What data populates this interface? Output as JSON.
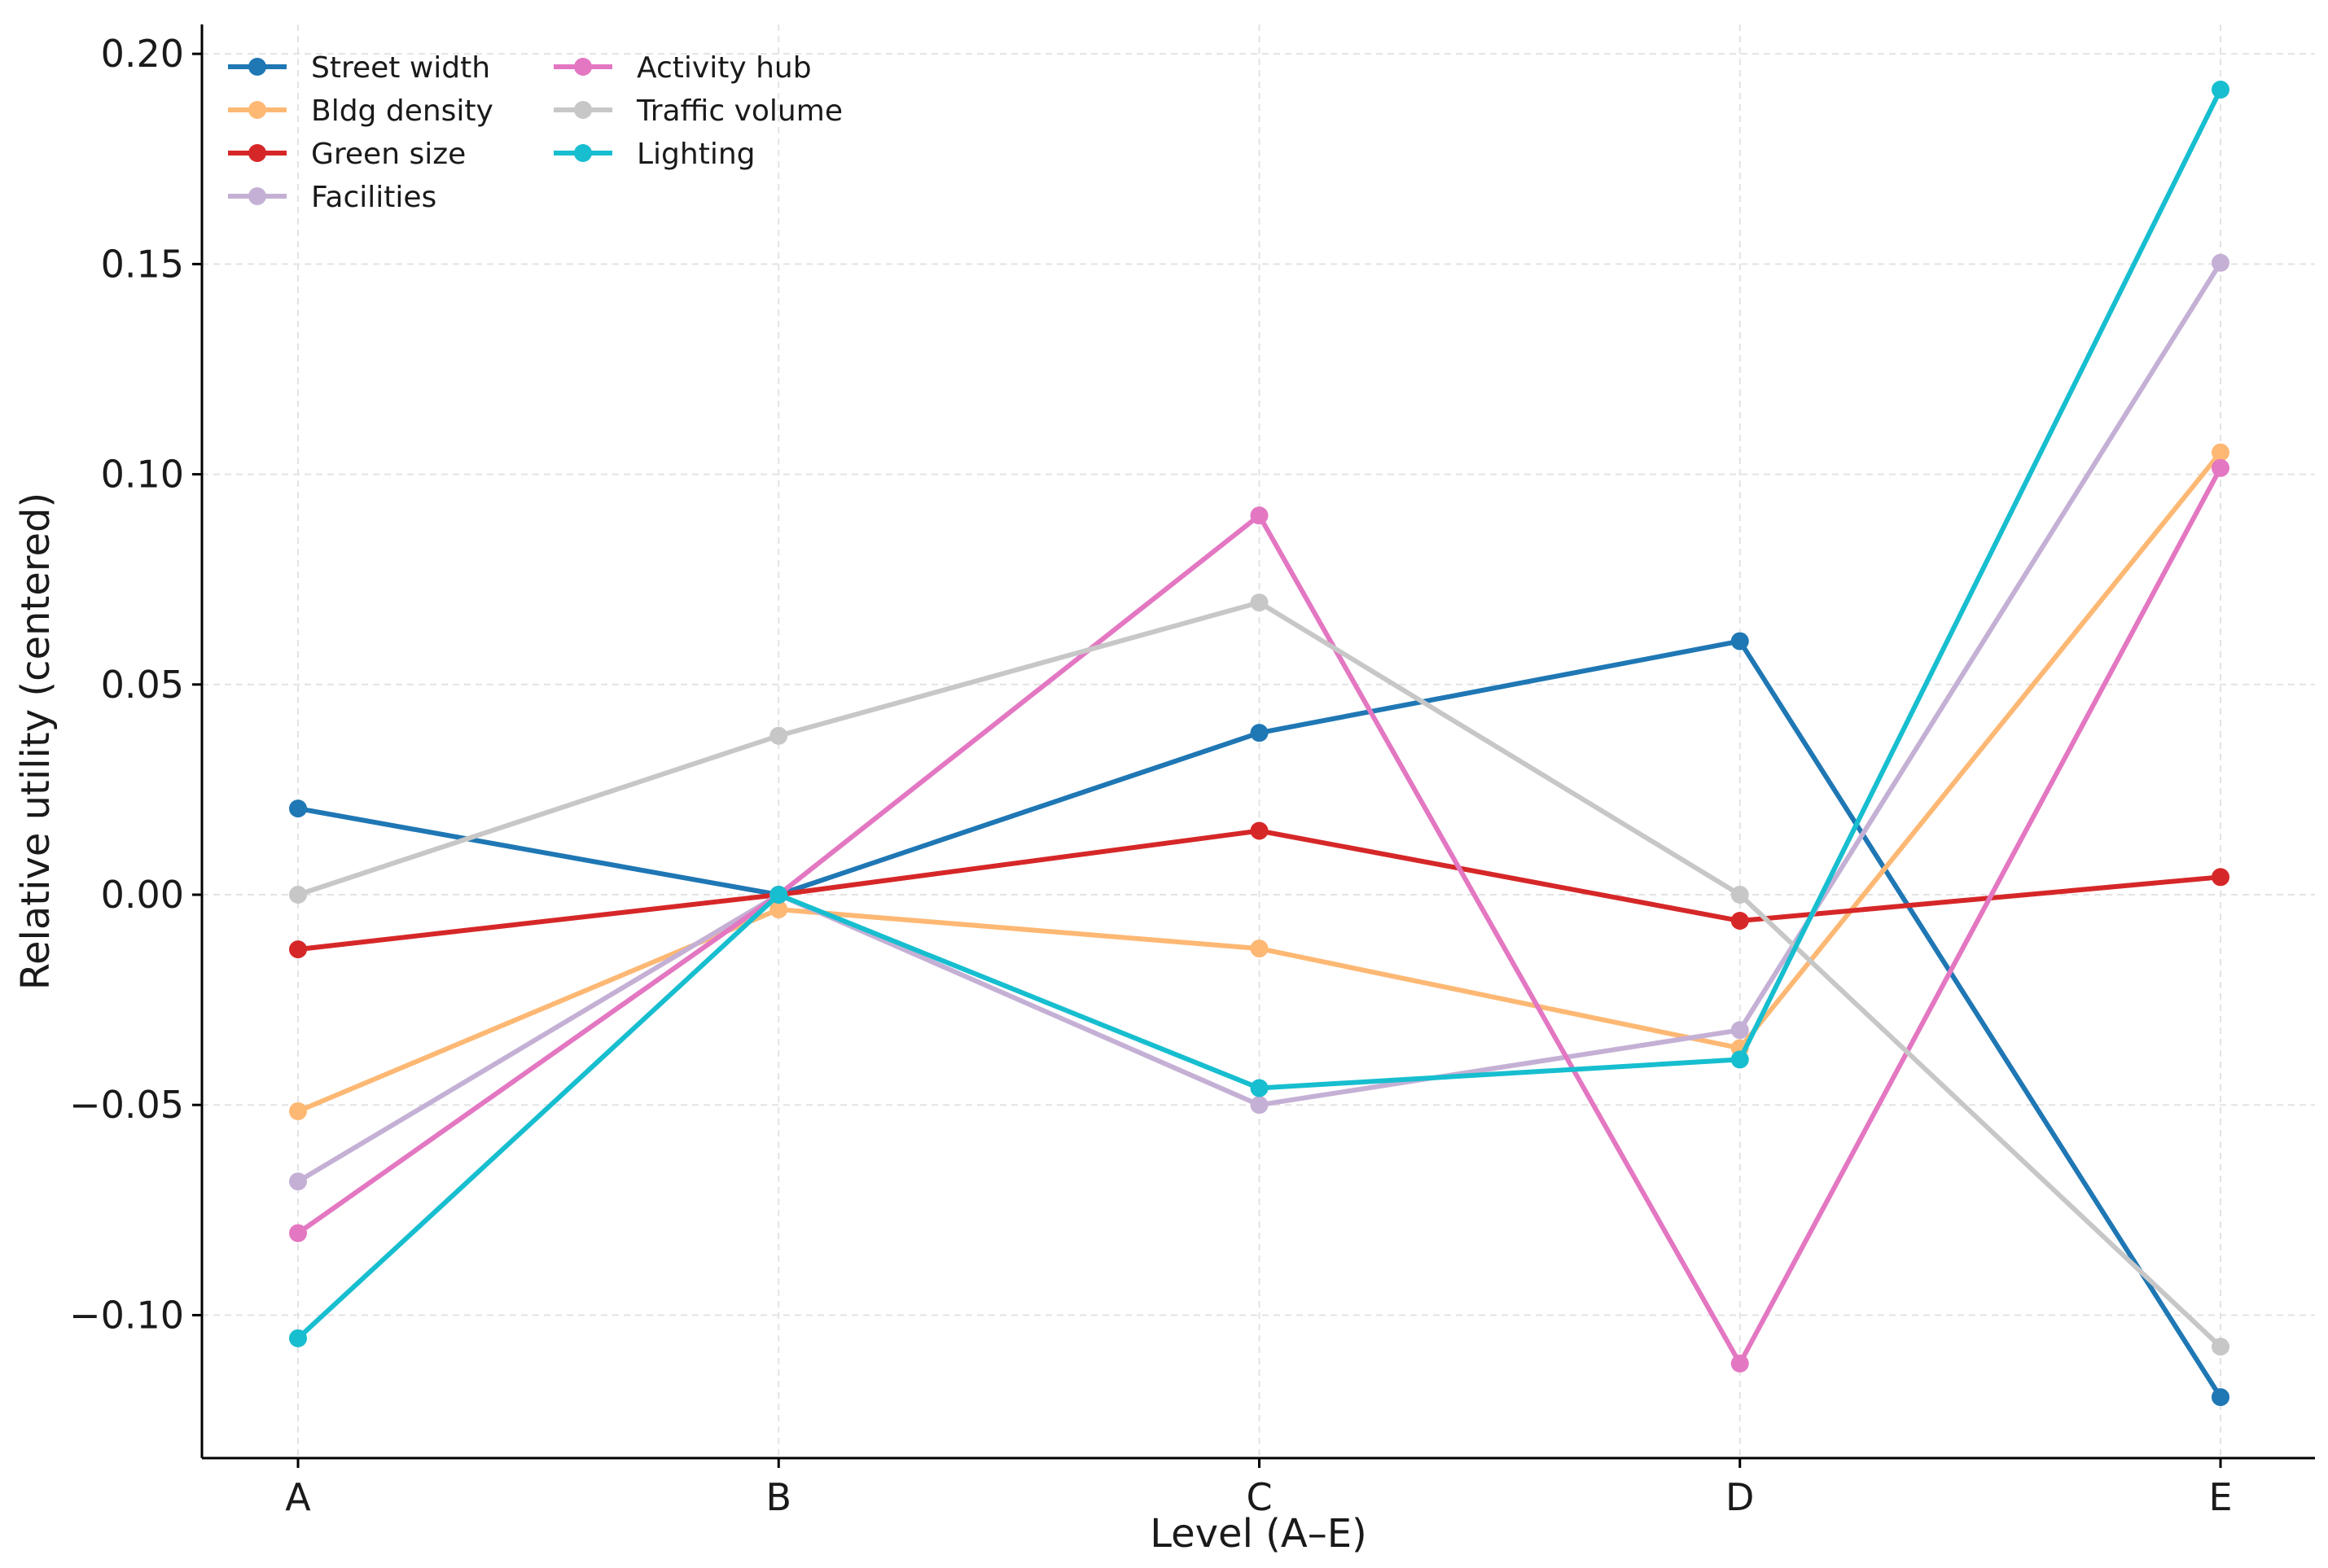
{
  "chart_data": {
    "type": "line",
    "title": "",
    "xlabel": "Level (A–E)",
    "ylabel": "Relative utility (centered)",
    "categories": [
      "A",
      "B",
      "C",
      "D",
      "E"
    ],
    "ylim": [
      -0.134,
      0.207
    ],
    "yticks": [
      -0.1,
      -0.05,
      0.0,
      0.05,
      0.1,
      0.15,
      0.2
    ],
    "ytick_labels": [
      "−0.10",
      "−0.05",
      "0.00",
      "0.05",
      "0.10",
      "0.15",
      "0.20"
    ],
    "grid": true,
    "legend_position": "top-left",
    "series": [
      {
        "name": "Street width",
        "color": "#1f77b4",
        "values": [
          0.0205,
          0.0,
          0.0385,
          0.0603,
          -0.1195
        ]
      },
      {
        "name": "Bldg density",
        "color": "#fdb874",
        "values": [
          -0.0515,
          -0.0035,
          -0.0128,
          -0.0365,
          0.1052
        ]
      },
      {
        "name": "Green size",
        "color": "#d62728",
        "values": [
          -0.013,
          0.0,
          0.0152,
          -0.0062,
          0.0042
        ]
      },
      {
        "name": "Facilities",
        "color": "#c5b0d5",
        "values": [
          -0.0682,
          0.0,
          -0.05,
          -0.0322,
          0.1503
        ]
      },
      {
        "name": "Activity hub",
        "color": "#e377c2",
        "values": [
          -0.0805,
          0.0,
          0.0902,
          -0.1115,
          0.1015
        ]
      },
      {
        "name": "Traffic volume",
        "color": "#c7c7c7",
        "values": [
          0.0,
          0.0378,
          0.0695,
          0.0,
          -0.1075
        ]
      },
      {
        "name": "Lighting",
        "color": "#17becf",
        "values": [
          -0.1055,
          0.0,
          -0.046,
          -0.0392,
          0.1915
        ]
      }
    ]
  }
}
